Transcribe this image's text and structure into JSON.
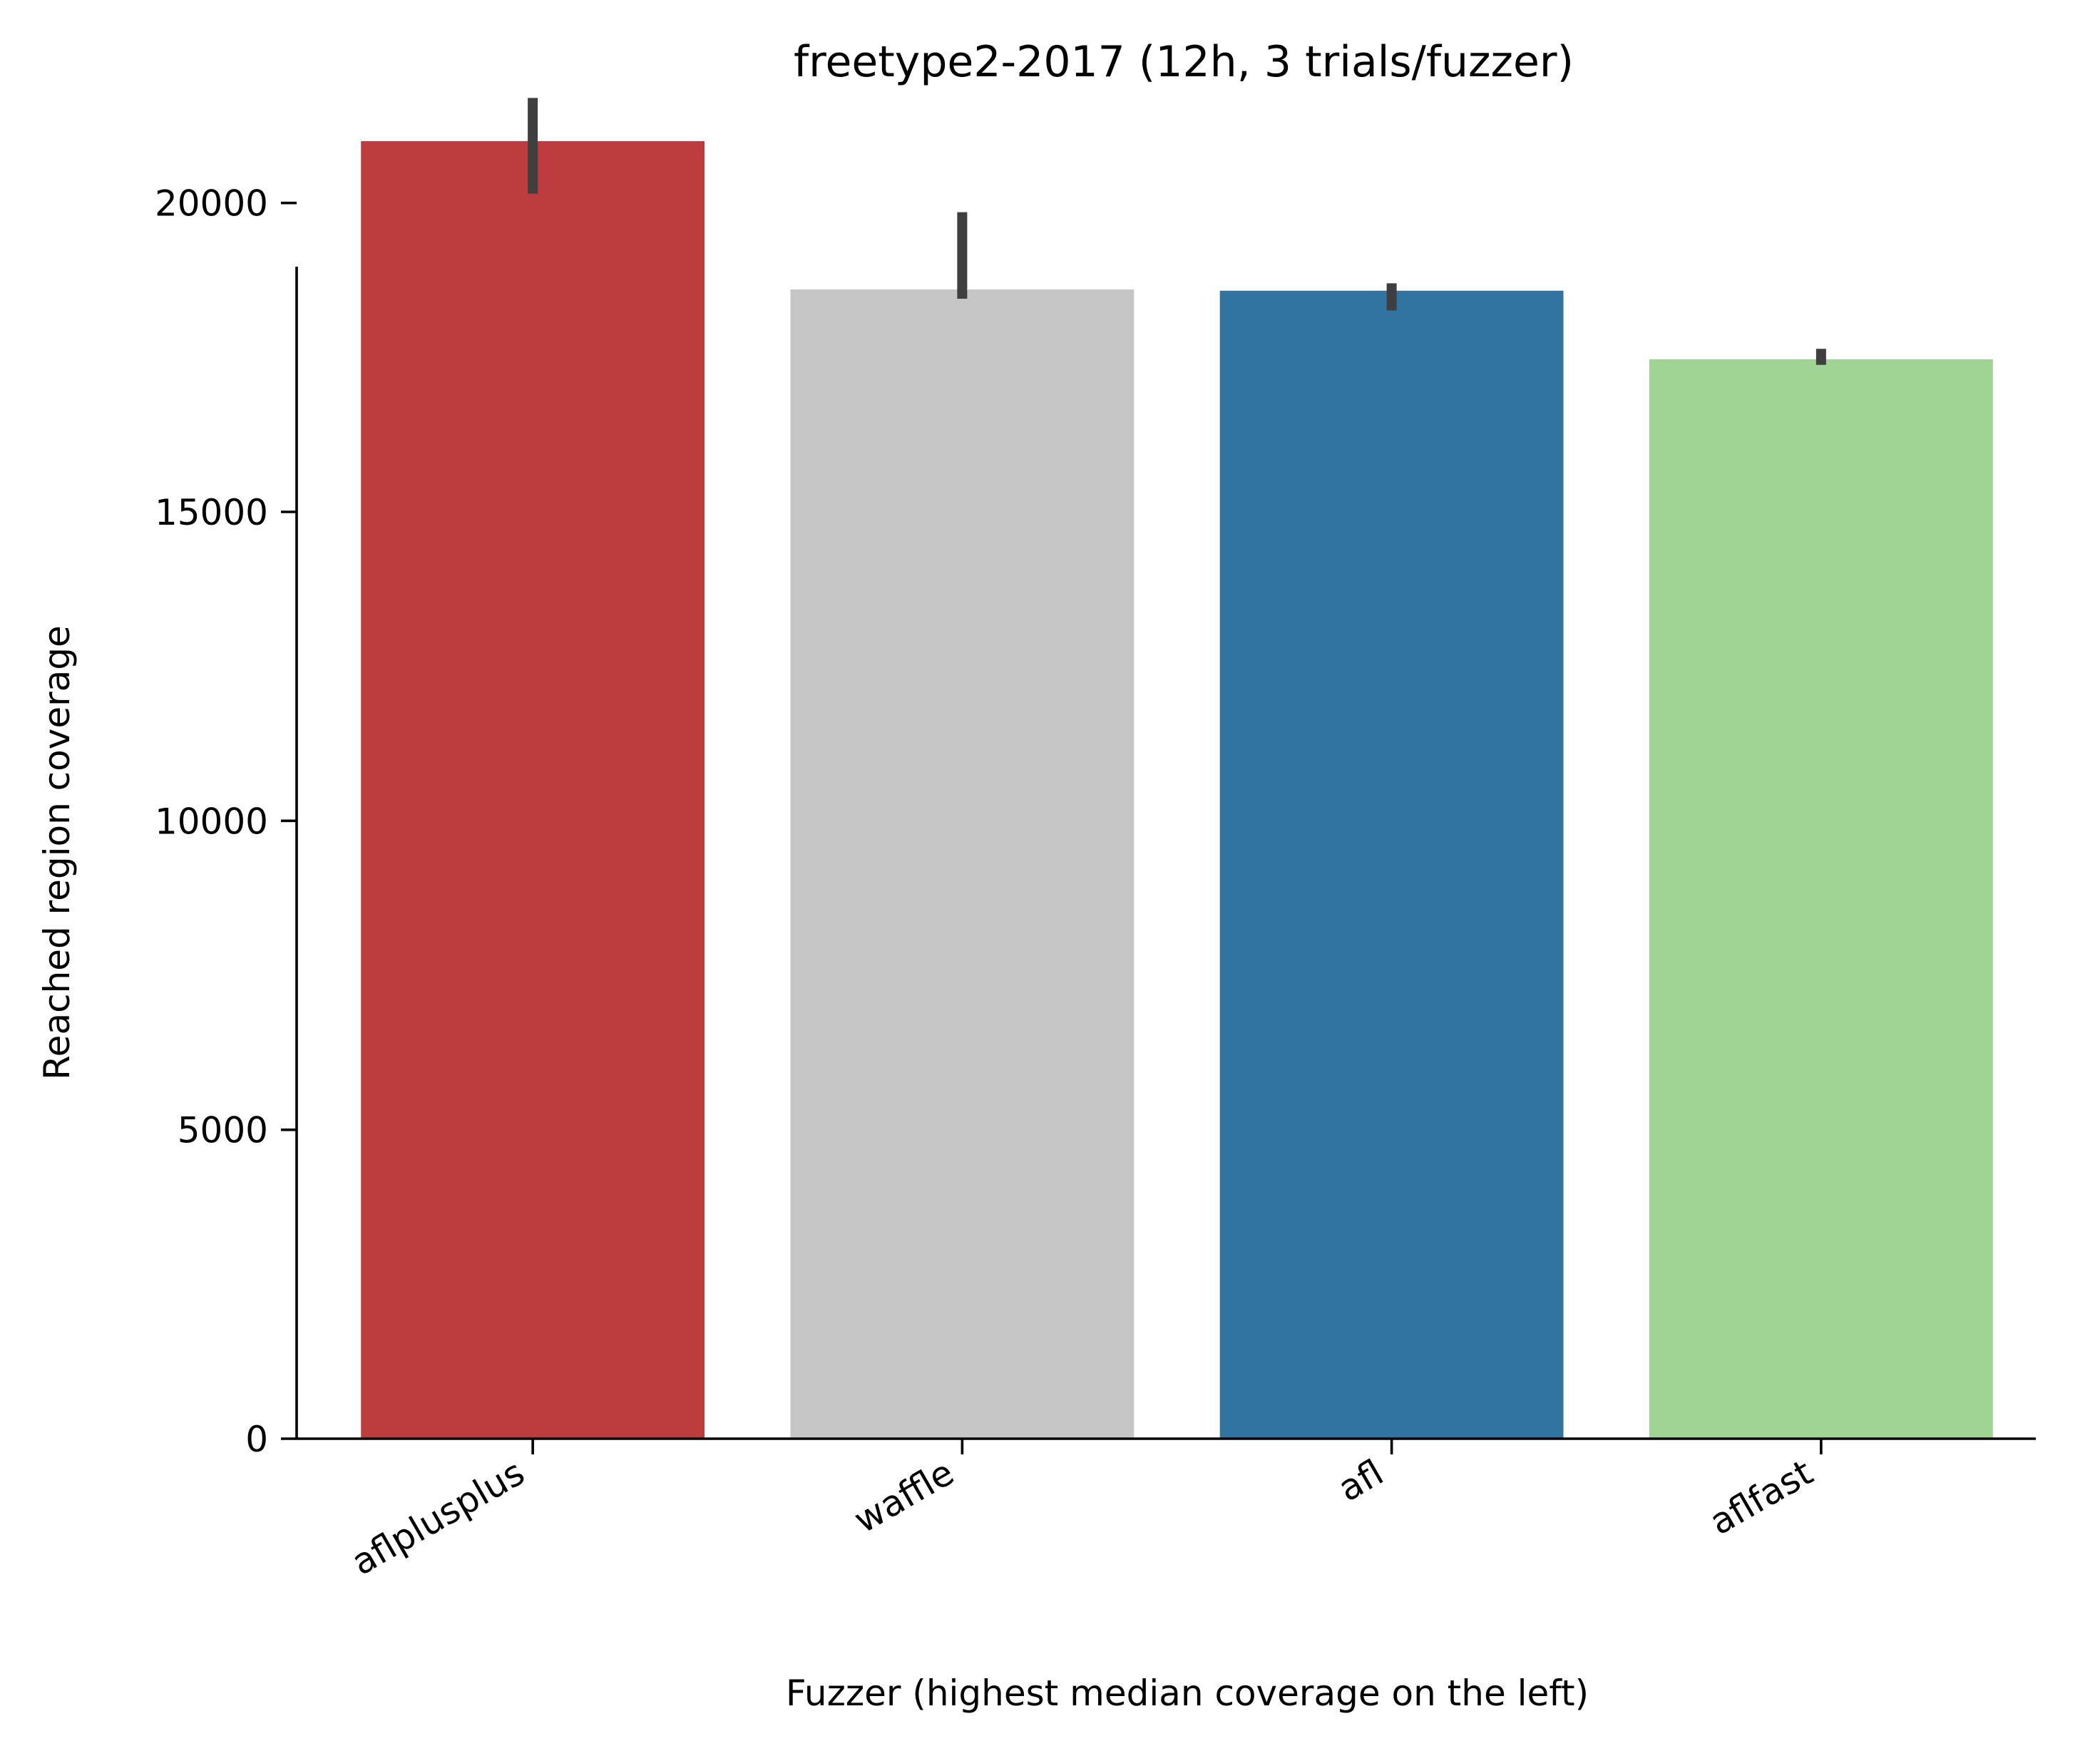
{
  "chart_data": {
    "type": "bar",
    "title": "freetype2-2017 (12h, 3 trials/fuzzer)",
    "xlabel": "Fuzzer (highest median coverage on the left)",
    "ylabel": "Reached region coverage",
    "ylim": [
      0,
      21700
    ],
    "yticks": [
      0,
      5000,
      10000,
      15000,
      20000
    ],
    "categories": [
      "aflplusplus",
      "waffle",
      "afl",
      "aflfast"
    ],
    "values": [
      21000,
      18600,
      18580,
      17470
    ],
    "error_low": [
      20150,
      18450,
      18260,
      17380
    ],
    "error_high": [
      21700,
      19850,
      18700,
      17640
    ],
    "colors": [
      "#bd3d3e",
      "#c6c6c6",
      "#3274a1",
      "#a0d494"
    ],
    "error_color": "#3f3f3f",
    "grid": false,
    "legend": "none"
  }
}
